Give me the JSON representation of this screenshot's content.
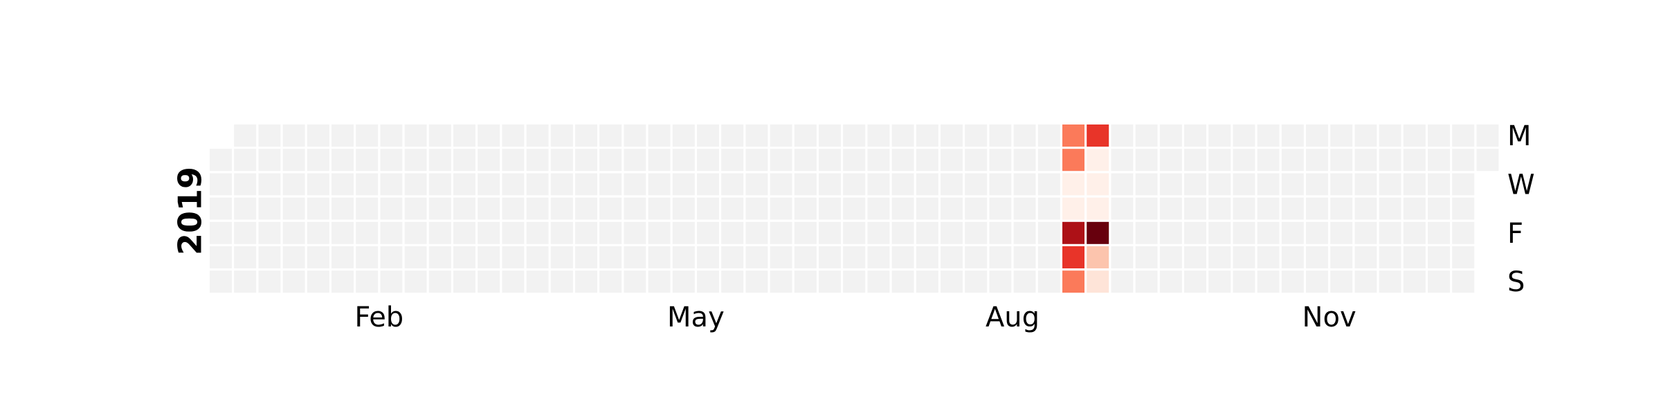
{
  "chart_data": {
    "type": "heatmap",
    "title": "",
    "year": "2019",
    "x_tick_labels": [
      "Feb",
      "May",
      "Aug",
      "Nov"
    ],
    "y_tick_labels": [
      "M",
      "W",
      "F",
      "S"
    ],
    "weeks": 53,
    "first_week_start_weekday": "Tue",
    "last_week_end_weekday": "Tue",
    "colormap": "Reds",
    "empty_color": "#f2f2f2",
    "value_range": [
      0,
      1
    ],
    "nonzero_cells": [
      {
        "week": 35,
        "weekday": "Mon",
        "value": 0.45
      },
      {
        "week": 35,
        "weekday": "Tue",
        "value": 0.45
      },
      {
        "week": 35,
        "weekday": "Wed",
        "value": 0.03
      },
      {
        "week": 35,
        "weekday": "Thu",
        "value": 0.03
      },
      {
        "week": 35,
        "weekday": "Fri",
        "value": 0.85
      },
      {
        "week": 35,
        "weekday": "Sat",
        "value": 0.65
      },
      {
        "week": 35,
        "weekday": "Sun",
        "value": 0.45
      },
      {
        "week": 36,
        "weekday": "Mon",
        "value": 0.65
      },
      {
        "week": 36,
        "weekday": "Tue",
        "value": 0.03
      },
      {
        "week": 36,
        "weekday": "Wed",
        "value": 0.03
      },
      {
        "week": 36,
        "weekday": "Thu",
        "value": 0.03
      },
      {
        "week": 36,
        "weekday": "Fri",
        "value": 1.0
      },
      {
        "week": 36,
        "weekday": "Sat",
        "value": 0.22
      },
      {
        "week": 36,
        "weekday": "Sun",
        "value": 0.1
      }
    ]
  }
}
